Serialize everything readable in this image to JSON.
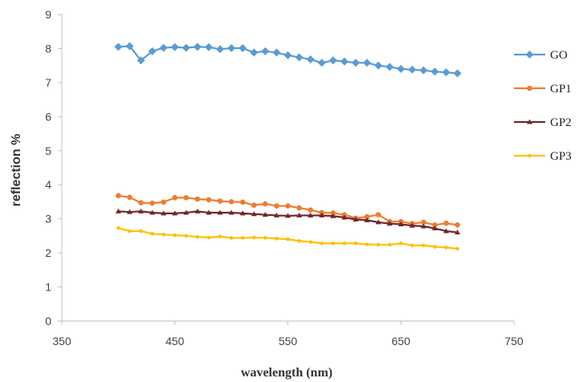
{
  "chart_data": {
    "type": "line",
    "title": "",
    "xlabel": "wavelength (nm)",
    "ylabel": "reflection %",
    "xlim": [
      350,
      750
    ],
    "ylim": [
      0,
      9
    ],
    "x_ticks": [
      350,
      450,
      550,
      650,
      750
    ],
    "y_ticks": [
      0,
      1,
      2,
      3,
      4,
      5,
      6,
      7,
      8,
      9
    ],
    "grid": false,
    "legend_position": "right",
    "x": [
      400,
      410,
      420,
      430,
      440,
      450,
      460,
      470,
      480,
      490,
      500,
      510,
      520,
      530,
      540,
      550,
      560,
      570,
      580,
      590,
      600,
      610,
      620,
      630,
      640,
      650,
      660,
      670,
      680,
      690,
      700
    ],
    "series": [
      {
        "name": "GO",
        "color": "#5B9BD5",
        "marker": "diamond",
        "values": [
          8.05,
          8.07,
          7.65,
          7.92,
          8.02,
          8.04,
          8.02,
          8.05,
          8.04,
          7.98,
          8.01,
          8.01,
          7.88,
          7.92,
          7.88,
          7.8,
          7.74,
          7.68,
          7.58,
          7.65,
          7.62,
          7.58,
          7.58,
          7.5,
          7.46,
          7.4,
          7.38,
          7.36,
          7.32,
          7.3,
          7.27
        ]
      },
      {
        "name": "GP1",
        "color": "#ED7D31",
        "marker": "circle",
        "values": [
          3.68,
          3.63,
          3.47,
          3.46,
          3.49,
          3.62,
          3.62,
          3.58,
          3.56,
          3.52,
          3.5,
          3.49,
          3.4,
          3.44,
          3.38,
          3.38,
          3.32,
          3.26,
          3.18,
          3.17,
          3.12,
          3.02,
          3.06,
          3.12,
          2.92,
          2.92,
          2.86,
          2.9,
          2.82,
          2.87,
          2.82
        ]
      },
      {
        "name": "GP2",
        "color": "#70262A",
        "marker": "triangle",
        "values": [
          3.22,
          3.2,
          3.22,
          3.18,
          3.16,
          3.16,
          3.18,
          3.22,
          3.18,
          3.18,
          3.18,
          3.16,
          3.14,
          3.12,
          3.1,
          3.09,
          3.1,
          3.1,
          3.1,
          3.08,
          3.04,
          2.98,
          2.96,
          2.9,
          2.86,
          2.84,
          2.8,
          2.78,
          2.72,
          2.64,
          2.6
        ]
      },
      {
        "name": "GP3",
        "color": "#FFC000",
        "marker": "circle-small",
        "values": [
          2.73,
          2.64,
          2.64,
          2.56,
          2.54,
          2.52,
          2.5,
          2.47,
          2.45,
          2.48,
          2.44,
          2.44,
          2.45,
          2.44,
          2.42,
          2.4,
          2.35,
          2.32,
          2.28,
          2.28,
          2.28,
          2.28,
          2.25,
          2.24,
          2.24,
          2.28,
          2.22,
          2.22,
          2.18,
          2.16,
          2.12
        ]
      }
    ]
  }
}
